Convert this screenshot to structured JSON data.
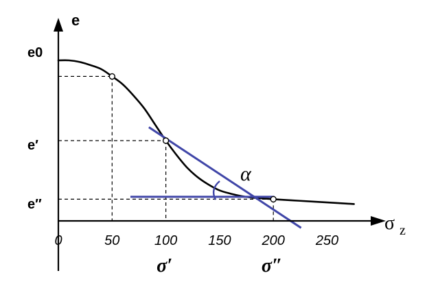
{
  "chart_data": {
    "type": "line",
    "title": "",
    "ylabel": "e",
    "xlabel": "σ",
    "xlabel_subscript": "z",
    "xlim": [
      0,
      280
    ],
    "x_ticks": [
      0,
      50,
      100,
      150,
      200,
      250
    ],
    "x_tick_labels": [
      "0",
      "50",
      "100",
      "150",
      "200",
      "250"
    ],
    "y_levels": {
      "e0": 0.92,
      "e_prime": 0.5,
      "e_double_prime": 0.135
    },
    "y_labels": {
      "e0": "e0",
      "e_prime": "e′",
      "e_double_prime": "e″"
    },
    "series": [
      {
        "values": [
          [
            0,
            1.0
          ],
          [
            10,
            1.0
          ],
          [
            20,
            0.99
          ],
          [
            30,
            0.97
          ],
          [
            40,
            0.945
          ],
          [
            50,
            0.9
          ],
          [
            60,
            0.85
          ],
          [
            70,
            0.78
          ],
          [
            80,
            0.7
          ],
          [
            90,
            0.6
          ],
          [
            100,
            0.5
          ],
          [
            110,
            0.41
          ],
          [
            120,
            0.33
          ],
          [
            130,
            0.27
          ],
          [
            140,
            0.225
          ],
          [
            150,
            0.19
          ],
          [
            160,
            0.17
          ],
          [
            170,
            0.155
          ],
          [
            180,
            0.145
          ],
          [
            190,
            0.14
          ],
          [
            200,
            0.135
          ],
          [
            225,
            0.125
          ],
          [
            250,
            0.115
          ],
          [
            275,
            0.105
          ]
        ]
      }
    ],
    "marked_points": [
      {
        "x": 50,
        "y": 0.9
      },
      {
        "x": 100,
        "y": 0.5
      },
      {
        "x": 200,
        "y": 0.135
      }
    ],
    "sigma_labels": [
      {
        "x": 100,
        "text": "σ′"
      },
      {
        "x": 200,
        "text": "σ″"
      }
    ],
    "tangent_line": {
      "x_start": 85,
      "y_start": 0.58,
      "x_end": 225,
      "y_end": -0.04
    },
    "horizontal_line": {
      "x_start": 68,
      "x_end": 200,
      "y": 0.15
    },
    "angle_label": "α",
    "colors": {
      "construction": "#4046a8",
      "curve": "#000000"
    }
  }
}
